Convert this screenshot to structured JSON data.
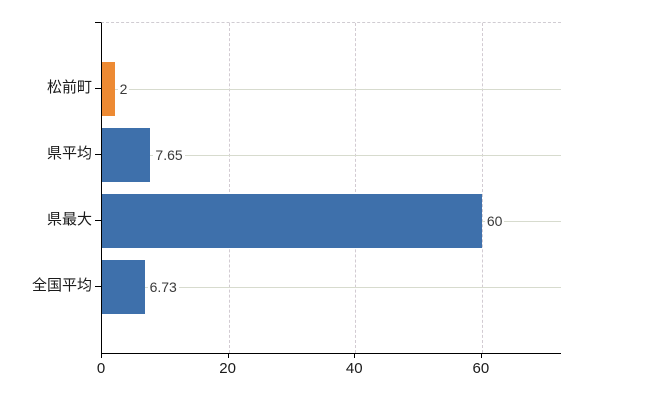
{
  "chart_data": {
    "type": "bar",
    "orientation": "horizontal",
    "categories": [
      "松前町",
      "県平均",
      "県最大",
      "全国平均"
    ],
    "values": [
      2,
      7.65,
      60,
      6.73
    ],
    "value_labels": [
      "2",
      "7.65",
      "60",
      "6.73"
    ],
    "bar_colors": [
      "#ed8a33",
      "#3e70ab",
      "#3e70ab",
      "#3e70ab"
    ],
    "x_tick_labels": [
      "0",
      "20",
      "40",
      "60"
    ],
    "x_tick_values": [
      0,
      20,
      40,
      60
    ],
    "xlim": [
      0,
      72.5
    ],
    "grid": {
      "horizontal": "solid",
      "vertical": "dashed",
      "top_border": "dashed"
    },
    "legend_position": "none"
  },
  "colors": {
    "bar_blue": "#3e70ab",
    "bar_orange": "#ed8a33",
    "grid_horizontal": "#d7dbce",
    "grid_vertical": "#d2cbd2",
    "axis_line": "#000000",
    "value_label_text": "#3a3a3a",
    "tick_label_text": "#1a1a1a",
    "background": "#ffffff"
  }
}
